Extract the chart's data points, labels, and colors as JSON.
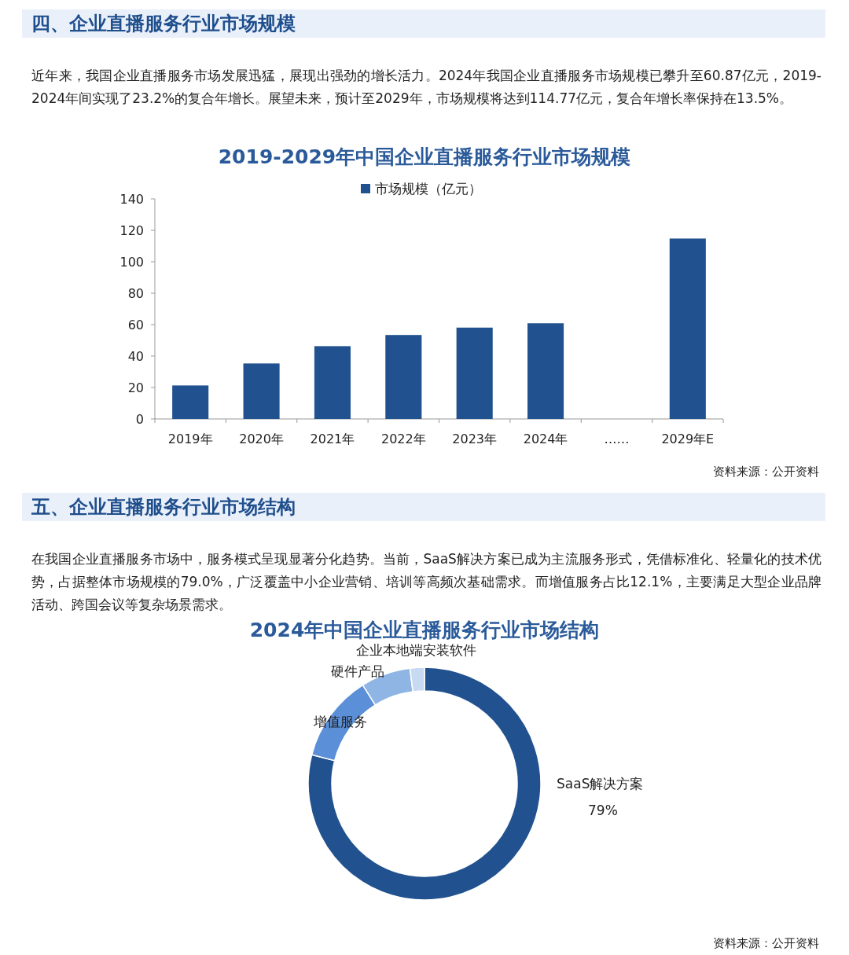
{
  "chart_data": [
    {
      "type": "bar",
      "title": "2019-2029年中国企业直播服务行业市场规模",
      "annotations": [
        "四、企业直播服务行业市场规模",
        "近年来，我国企业直播服务市场发展迅猛，展现出强劲的增长活力。2024年我国企业直播服务市场规模已攀升至60.87亿元，2019-2024年间实现了23.2%的复合年增长。展望未来，预计至2029年，市场规模将达到114.77亿元，复合年增长率保持在13.5%。",
        "资料来源：公开资料"
      ],
      "categories": [
        "2019年",
        "2020年",
        "2021年",
        "2022年",
        "2023年",
        "2024年",
        "……",
        "2029年E"
      ],
      "series": [
        {
          "name": "市场规模（亿元）",
          "color": "#21528f",
          "values": [
            21.3,
            35.3,
            46.3,
            53.4,
            58.1,
            60.87,
            null,
            114.77
          ]
        }
      ],
      "ylim": [
        0,
        140
      ],
      "yticks": [
        0,
        20,
        40,
        60,
        80,
        100,
        120,
        140
      ],
      "legend": "top"
    },
    {
      "type": "donut",
      "title": "2024年中国企业直播服务行业市场结构",
      "annotations": [
        "五、企业直播服务行业市场结构",
        "在我国企业直播服务市场中，服务模式呈现显著分化趋势。当前，SaaS解决方案已成为主流服务形式，凭借标准化、轻量化的技术优势，占据整体市场规模的79.0%，广泛覆盖中小企业营销、培训等高频次基础需求。而增值服务占比12.1%，主要满足大型企业品牌活动、跨国会议等复杂场景需求。",
        "资料来源：公开资料"
      ],
      "categories": [
        "SaaS解决方案",
        "增值服务",
        "硬件产品",
        "企业本地端安装软件"
      ],
      "values": [
        79,
        12.1,
        6.9,
        2.0
      ],
      "colors": [
        "#21528f",
        "#5b90d8",
        "#8fb5e5",
        "#c7daf2"
      ],
      "value_labels": [
        "79%",
        null,
        null,
        null
      ]
    }
  ]
}
